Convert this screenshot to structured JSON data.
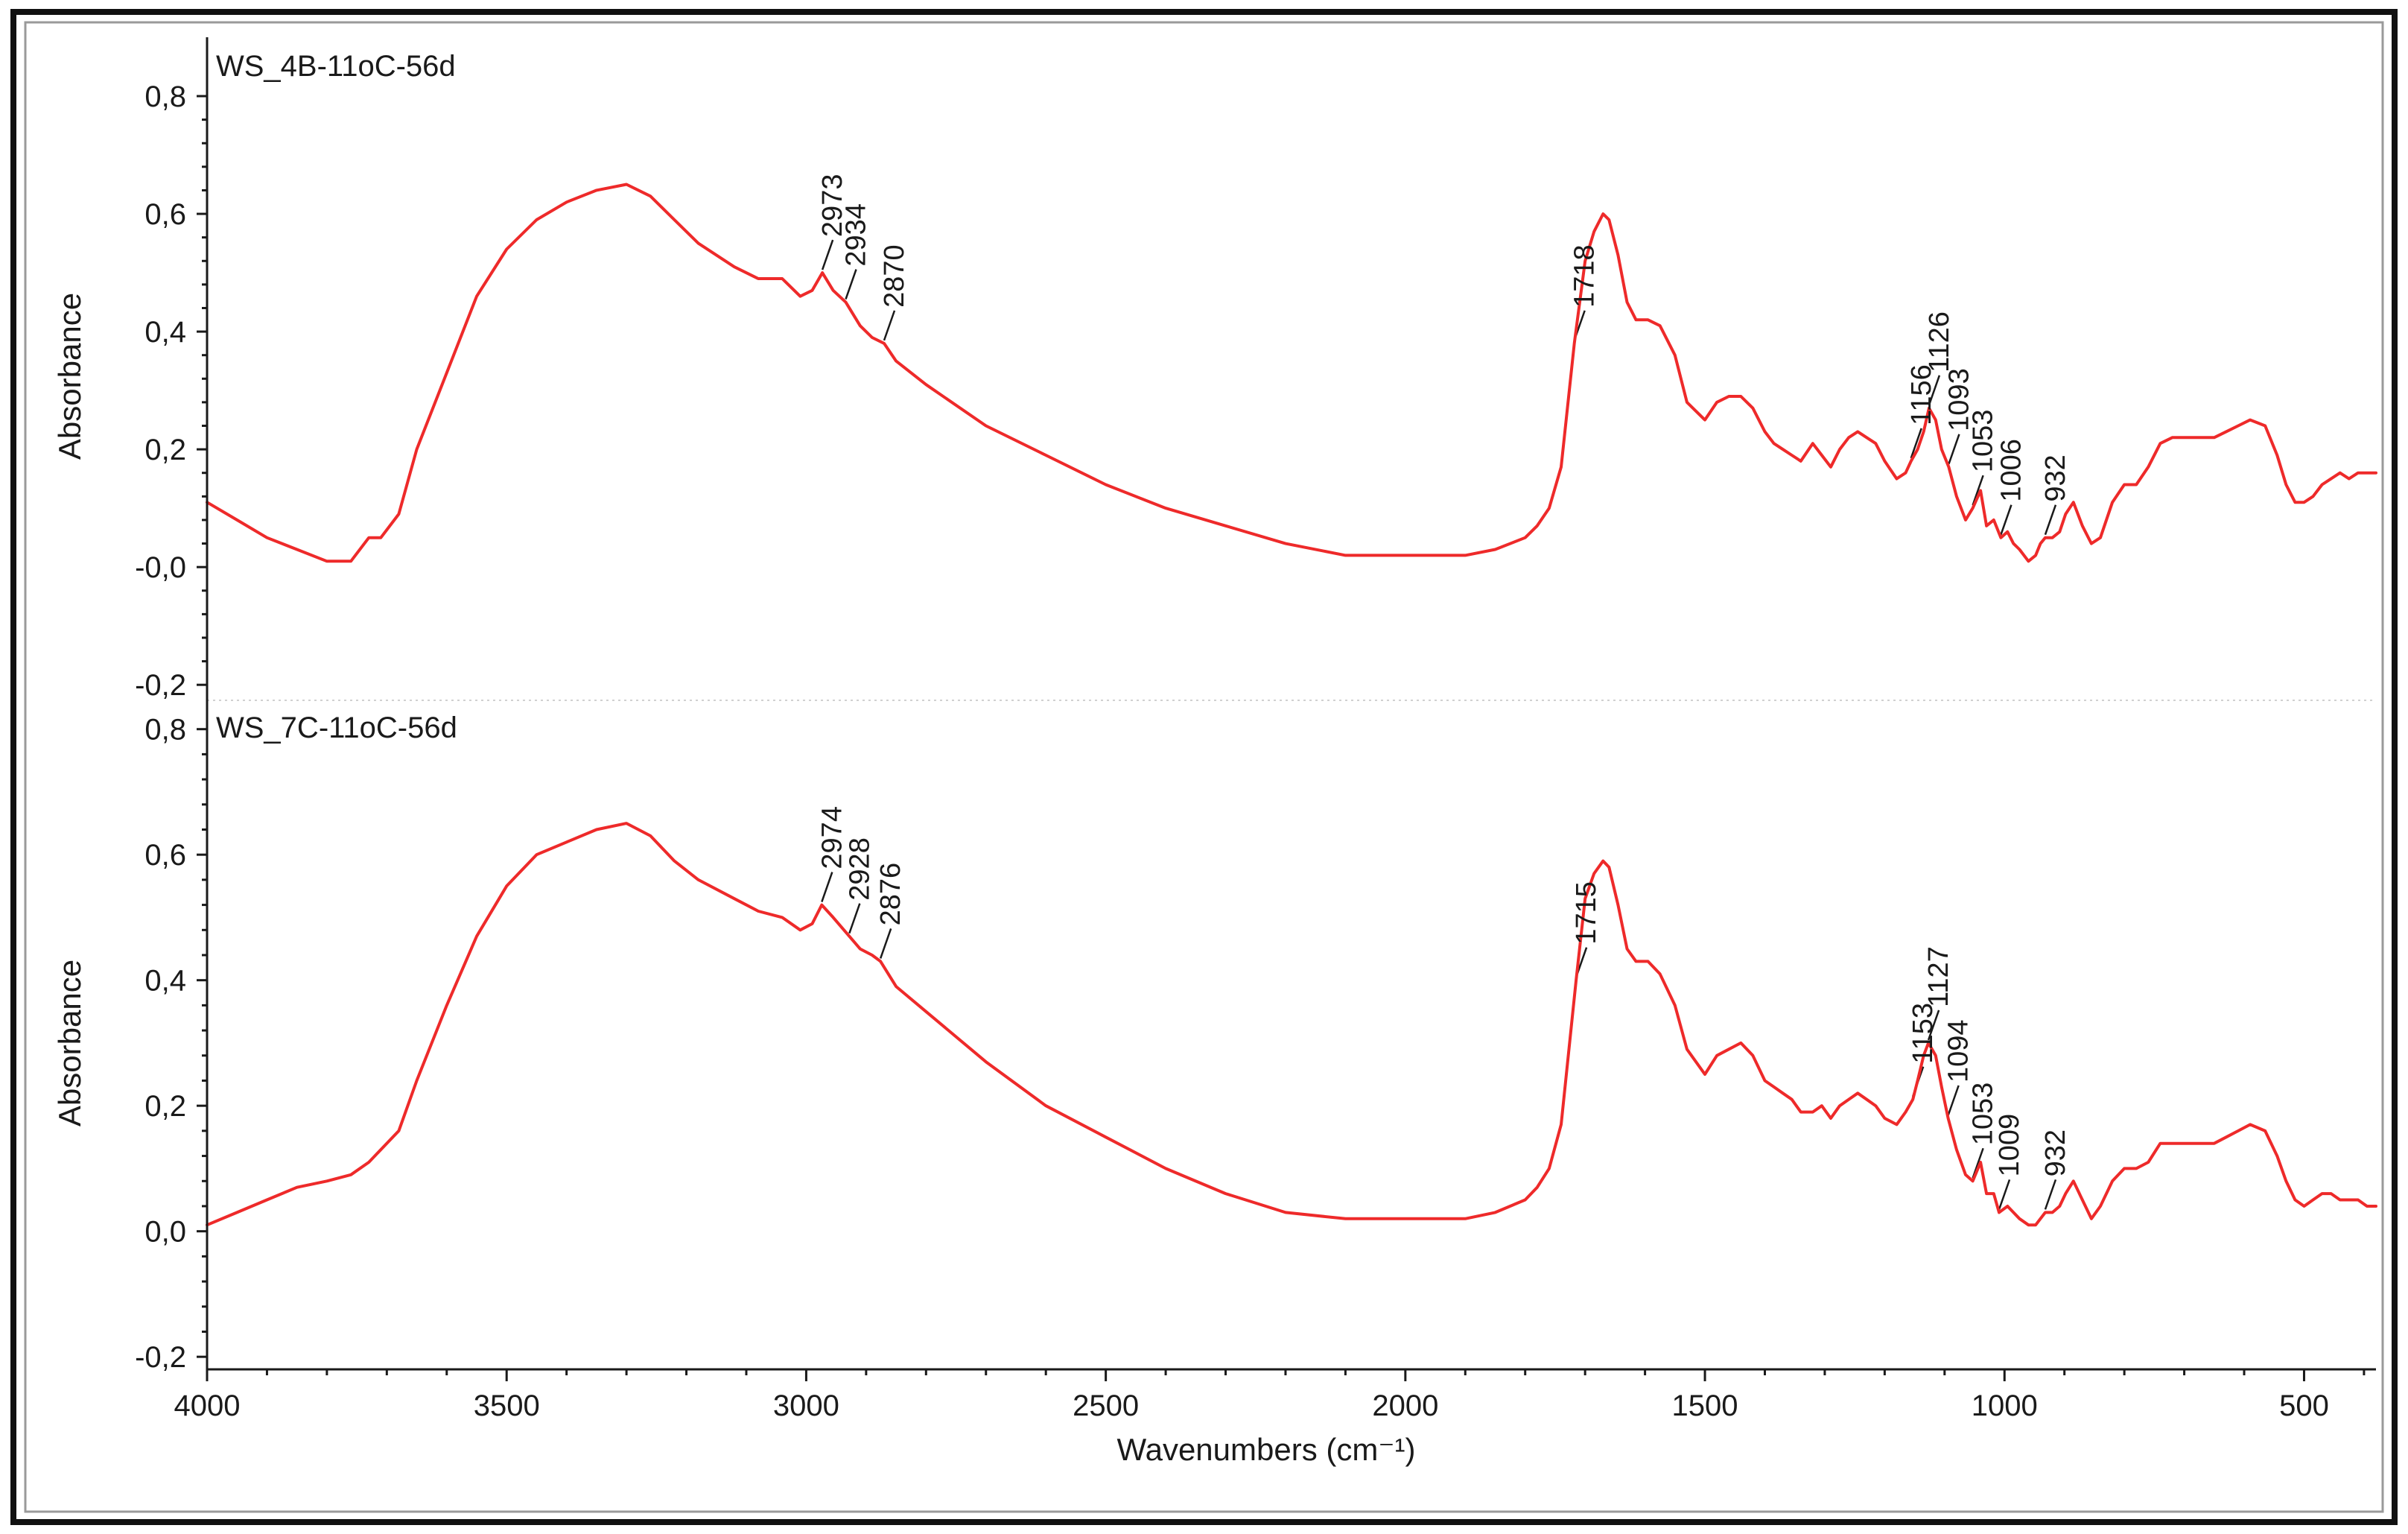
{
  "chart_data": {
    "type": "line",
    "xlabel": "Wavenumbers (cm⁻¹)",
    "xlim": [
      4000,
      380
    ],
    "x_ticks": [
      4000,
      3500,
      3000,
      2500,
      2000,
      1500,
      1000,
      500
    ],
    "x_tick_labels": [
      "4000",
      "3500",
      "3000",
      "2500",
      "2000",
      "1500",
      "1000",
      "500"
    ],
    "panels": [
      {
        "title": "WS_4B-11oC-56d",
        "ylabel": "Absorbance",
        "ylim": [
          -0.22,
          0.9
        ],
        "y_ticks": [
          -0.2,
          0.0,
          0.2,
          0.4,
          0.6,
          0.8
        ],
        "y_tick_labels": [
          "-0,2",
          "-0,0",
          "0,2",
          "0,4",
          "0,6",
          "0,8"
        ],
        "x": [
          4000,
          3950,
          3900,
          3850,
          3800,
          3760,
          3730,
          3710,
          3680,
          3650,
          3600,
          3550,
          3500,
          3450,
          3400,
          3350,
          3300,
          3260,
          3220,
          3180,
          3120,
          3080,
          3040,
          3010,
          2990,
          2973,
          2955,
          2934,
          2910,
          2890,
          2870,
          2850,
          2800,
          2700,
          2600,
          2500,
          2400,
          2300,
          2200,
          2100,
          2000,
          1900,
          1850,
          1800,
          1780,
          1760,
          1740,
          1718,
          1700,
          1685,
          1670,
          1660,
          1645,
          1630,
          1615,
          1595,
          1575,
          1550,
          1530,
          1500,
          1480,
          1460,
          1440,
          1420,
          1400,
          1385,
          1370,
          1355,
          1340,
          1320,
          1305,
          1290,
          1275,
          1260,
          1245,
          1230,
          1215,
          1200,
          1180,
          1165,
          1156,
          1145,
          1135,
          1126,
          1115,
          1105,
          1093,
          1080,
          1065,
          1053,
          1040,
          1030,
          1018,
          1006,
          995,
          985,
          975,
          960,
          948,
          940,
          932,
          920,
          908,
          898,
          885,
          870,
          855,
          840,
          820,
          800,
          780,
          760,
          740,
          720,
          700,
          670,
          650,
          630,
          610,
          590,
          565,
          545,
          530,
          515,
          500,
          485,
          470,
          455,
          440,
          425,
          410,
          395,
          380
        ],
        "y": [
          0.11,
          0.08,
          0.05,
          0.03,
          0.01,
          0.01,
          0.05,
          0.05,
          0.09,
          0.2,
          0.33,
          0.46,
          0.54,
          0.59,
          0.62,
          0.64,
          0.65,
          0.63,
          0.59,
          0.55,
          0.51,
          0.49,
          0.49,
          0.46,
          0.47,
          0.5,
          0.47,
          0.45,
          0.41,
          0.39,
          0.38,
          0.35,
          0.31,
          0.24,
          0.19,
          0.14,
          0.1,
          0.07,
          0.04,
          0.02,
          0.02,
          0.02,
          0.03,
          0.05,
          0.07,
          0.1,
          0.17,
          0.38,
          0.52,
          0.57,
          0.6,
          0.59,
          0.53,
          0.45,
          0.42,
          0.42,
          0.41,
          0.36,
          0.28,
          0.25,
          0.28,
          0.29,
          0.29,
          0.27,
          0.23,
          0.21,
          0.2,
          0.19,
          0.18,
          0.21,
          0.19,
          0.17,
          0.2,
          0.22,
          0.23,
          0.22,
          0.21,
          0.18,
          0.15,
          0.16,
          0.18,
          0.2,
          0.23,
          0.27,
          0.25,
          0.2,
          0.17,
          0.12,
          0.08,
          0.1,
          0.13,
          0.07,
          0.08,
          0.05,
          0.06,
          0.04,
          0.03,
          0.01,
          0.02,
          0.04,
          0.05,
          0.05,
          0.06,
          0.09,
          0.11,
          0.07,
          0.04,
          0.05,
          0.11,
          0.14,
          0.14,
          0.17,
          0.21,
          0.22,
          0.22,
          0.22,
          0.22,
          0.23,
          0.24,
          0.25,
          0.24,
          0.19,
          0.14,
          0.11,
          0.11,
          0.12,
          0.14,
          0.15,
          0.16,
          0.15,
          0.16,
          0.16,
          0.16
        ],
        "annotations": [
          "2973",
          "2934",
          "2870",
          "1718",
          "1156",
          "1126",
          "1093",
          "1053",
          "1006",
          "932"
        ]
      },
      {
        "title": "WS_7C-11oC-56d",
        "ylabel": "Absorbance",
        "ylim": [
          -0.22,
          0.84
        ],
        "y_ticks": [
          -0.2,
          0.0,
          0.2,
          0.4,
          0.6,
          0.8
        ],
        "y_tick_labels": [
          "-0,2",
          "0,0",
          "0,2",
          "0,4",
          "0,6",
          "0,8"
        ],
        "x": [
          4000,
          3950,
          3900,
          3850,
          3800,
          3760,
          3730,
          3710,
          3680,
          3650,
          3600,
          3550,
          3500,
          3450,
          3400,
          3350,
          3300,
          3260,
          3220,
          3180,
          3120,
          3080,
          3040,
          3010,
          2990,
          2974,
          2955,
          2928,
          2910,
          2890,
          2876,
          2850,
          2800,
          2700,
          2600,
          2500,
          2400,
          2300,
          2200,
          2100,
          2000,
          1900,
          1850,
          1800,
          1780,
          1760,
          1740,
          1715,
          1700,
          1685,
          1670,
          1660,
          1645,
          1630,
          1615,
          1595,
          1575,
          1550,
          1530,
          1500,
          1480,
          1460,
          1440,
          1420,
          1400,
          1385,
          1370,
          1355,
          1340,
          1320,
          1305,
          1290,
          1275,
          1260,
          1245,
          1230,
          1215,
          1200,
          1180,
          1165,
          1153,
          1145,
          1135,
          1127,
          1115,
          1105,
          1094,
          1080,
          1065,
          1053,
          1040,
          1030,
          1018,
          1009,
          995,
          985,
          975,
          960,
          948,
          940,
          932,
          920,
          908,
          898,
          885,
          870,
          855,
          840,
          820,
          800,
          780,
          760,
          740,
          720,
          700,
          670,
          650,
          630,
          610,
          590,
          565,
          545,
          530,
          515,
          500,
          485,
          470,
          455,
          440,
          425,
          410,
          395,
          380
        ],
        "y": [
          0.01,
          0.03,
          0.05,
          0.07,
          0.08,
          0.09,
          0.11,
          0.13,
          0.16,
          0.24,
          0.36,
          0.47,
          0.55,
          0.6,
          0.62,
          0.64,
          0.65,
          0.63,
          0.59,
          0.56,
          0.53,
          0.51,
          0.5,
          0.48,
          0.49,
          0.52,
          0.5,
          0.47,
          0.45,
          0.44,
          0.43,
          0.39,
          0.35,
          0.27,
          0.2,
          0.15,
          0.1,
          0.06,
          0.03,
          0.02,
          0.02,
          0.02,
          0.03,
          0.05,
          0.07,
          0.1,
          0.17,
          0.4,
          0.53,
          0.57,
          0.59,
          0.58,
          0.52,
          0.45,
          0.43,
          0.43,
          0.41,
          0.36,
          0.29,
          0.25,
          0.28,
          0.29,
          0.3,
          0.28,
          0.24,
          0.23,
          0.22,
          0.21,
          0.19,
          0.19,
          0.2,
          0.18,
          0.2,
          0.21,
          0.22,
          0.21,
          0.2,
          0.18,
          0.17,
          0.19,
          0.21,
          0.24,
          0.28,
          0.3,
          0.28,
          0.23,
          0.18,
          0.13,
          0.09,
          0.08,
          0.11,
          0.06,
          0.06,
          0.03,
          0.04,
          0.03,
          0.02,
          0.01,
          0.01,
          0.02,
          0.03,
          0.03,
          0.04,
          0.06,
          0.08,
          0.05,
          0.02,
          0.04,
          0.08,
          0.1,
          0.1,
          0.11,
          0.14,
          0.14,
          0.14,
          0.14,
          0.14,
          0.15,
          0.16,
          0.17,
          0.16,
          0.12,
          0.08,
          0.05,
          0.04,
          0.05,
          0.06,
          0.06,
          0.05,
          0.05,
          0.05,
          0.04,
          0.04
        ],
        "annotations": [
          "2974",
          "2928",
          "2876",
          "1715",
          "1153",
          "1127",
          "1094",
          "1053",
          "1009",
          "932"
        ]
      }
    ],
    "colors": {
      "series": "#ee2a2a",
      "axis": "#1a1a1a",
      "frame": "#111111"
    }
  }
}
